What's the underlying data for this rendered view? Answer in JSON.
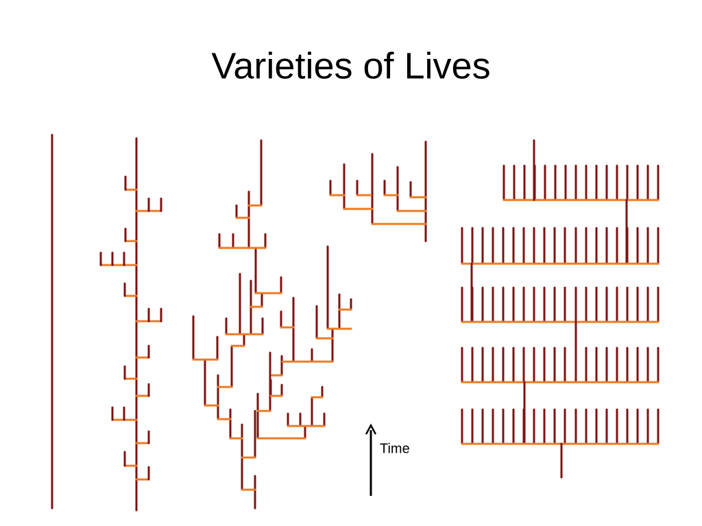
{
  "title": "Varieties of Lives",
  "time_label": "Time"
}
